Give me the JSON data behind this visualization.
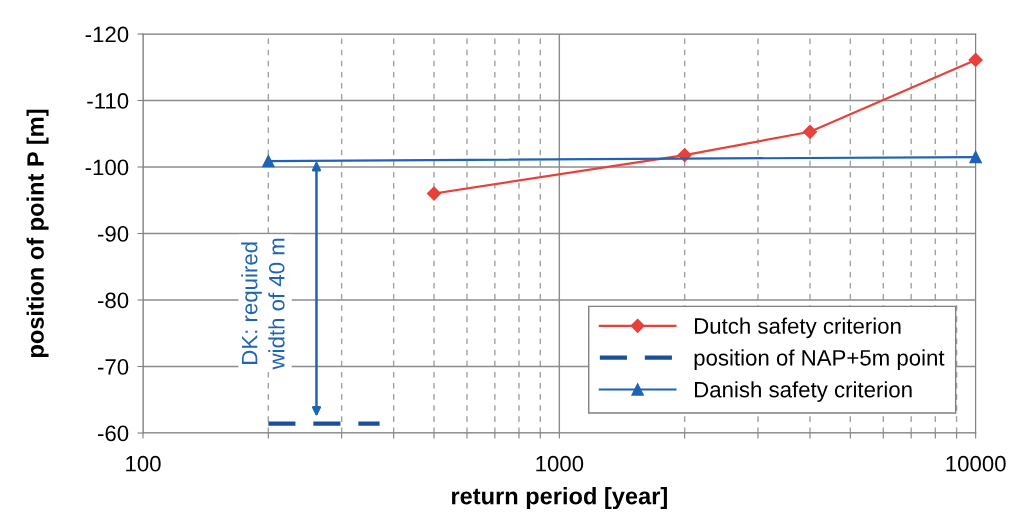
{
  "chart_data": {
    "type": "line",
    "xlabel": "return period [year]",
    "ylabel": "position of point P [m]",
    "log": "x",
    "xlim": [
      100,
      10000
    ],
    "xticks": [
      100,
      {
        "value": 200,
        "label": null
      },
      {
        "value": 300,
        "label": null
      },
      {
        "value": 400,
        "label": null
      },
      {
        "value": 500,
        "label": null
      },
      {
        "value": 600,
        "label": null
      },
      {
        "value": 700,
        "label": null
      },
      {
        "value": 800,
        "label": null
      },
      {
        "value": 900,
        "label": null
      },
      1000,
      {
        "value": 2000,
        "label": null
      },
      {
        "value": 3000,
        "label": null
      },
      {
        "value": 4000,
        "label": null
      },
      {
        "value": 5000,
        "label": null
      },
      {
        "value": 6000,
        "label": null
      },
      {
        "value": 7000,
        "label": null
      },
      {
        "value": 8000,
        "label": null
      },
      {
        "value": 9000,
        "label": null
      },
      10000
    ],
    "ylim": [
      -60,
      -120
    ],
    "yticks": [
      -120,
      -110,
      -100,
      -90,
      -80,
      -70,
      -60
    ],
    "grid": true,
    "legend": "bottom right",
    "series": [
      {
        "name": "Dutch safety criterion",
        "color": "#e8413c",
        "x": [
          500,
          2000,
          4000,
          10000
        ],
        "values": [
          -96,
          -101.8,
          -105.3,
          -116.1
        ],
        "marker": "diamond",
        "line_style": "solid"
      },
      {
        "name": "position of NAP+5m point",
        "color": "#1a4f9c",
        "x": [
          200,
          370
        ],
        "values": [
          -61.4,
          -61.4
        ],
        "marker": "none",
        "line_style": "dashed"
      },
      {
        "name": "Danish safety criterion",
        "color": "#1f64b4",
        "x": [
          200,
          10000
        ],
        "values": [
          -100.9,
          -101.5
        ],
        "marker": "triangle",
        "line_style": "solid"
      }
    ],
    "annotations": [
      {
        "text": "DK: required\nwidth of 40 m",
        "x": 261,
        "y": -61.4
      }
    ]
  }
}
